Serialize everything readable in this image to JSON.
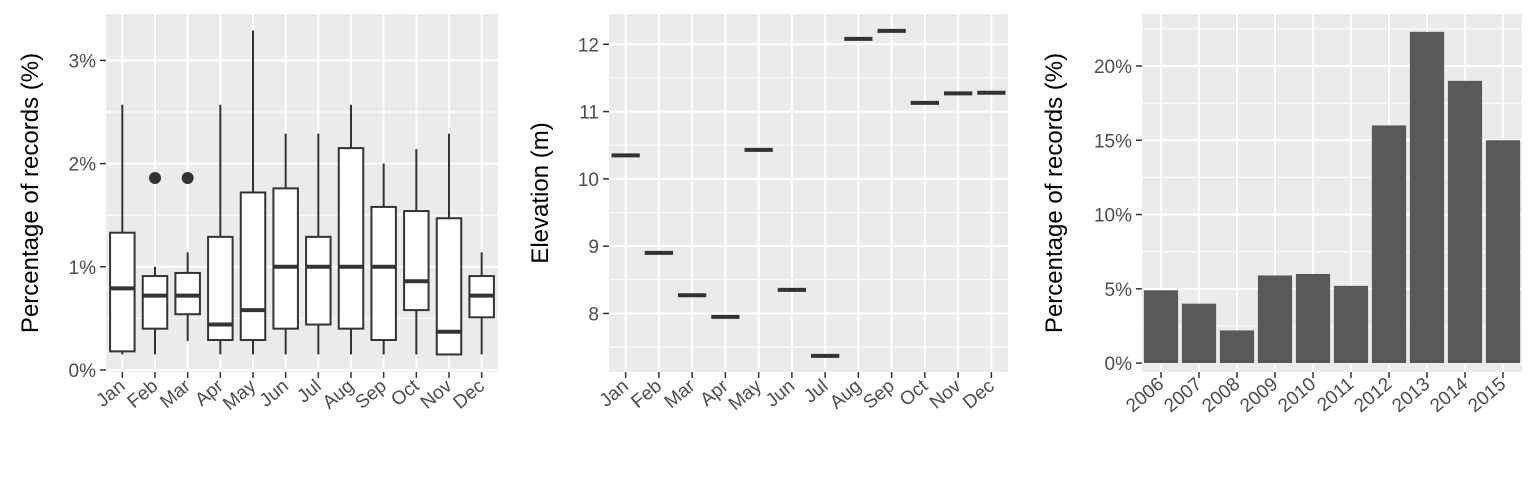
{
  "chart_data": [
    {
      "type": "box",
      "ylabel": "Percentage of records (%)",
      "categories": [
        "Jan",
        "Feb",
        "Mar",
        "Apr",
        "May",
        "Jun",
        "Jul",
        "Aug",
        "Sep",
        "Oct",
        "Nov",
        "Dec"
      ],
      "y_ticks": [
        0,
        1,
        2,
        3
      ],
      "y_tick_labels": [
        "0%",
        "1%",
        "2%",
        "3%"
      ],
      "ylim": [
        -0.02,
        3.45
      ],
      "boxes": [
        {
          "min": 0.15,
          "q1": 0.18,
          "median": 0.79,
          "q3": 1.33,
          "max": 2.57,
          "outliers": []
        },
        {
          "min": 0.15,
          "q1": 0.4,
          "median": 0.72,
          "q3": 0.91,
          "max": 1.0,
          "outliers": [
            1.86
          ]
        },
        {
          "min": 0.28,
          "q1": 0.54,
          "median": 0.72,
          "q3": 0.94,
          "max": 1.14,
          "outliers": [
            1.86
          ]
        },
        {
          "min": 0.15,
          "q1": 0.29,
          "median": 0.44,
          "q3": 1.29,
          "max": 2.57,
          "outliers": []
        },
        {
          "min": 0.15,
          "q1": 0.29,
          "median": 0.58,
          "q3": 1.72,
          "max": 3.29,
          "outliers": []
        },
        {
          "min": 0.15,
          "q1": 0.4,
          "median": 1.0,
          "q3": 1.76,
          "max": 2.29,
          "outliers": []
        },
        {
          "min": 0.15,
          "q1": 0.44,
          "median": 1.0,
          "q3": 1.29,
          "max": 2.29,
          "outliers": []
        },
        {
          "min": 0.15,
          "q1": 0.4,
          "median": 1.0,
          "q3": 2.15,
          "max": 2.57,
          "outliers": []
        },
        {
          "min": 0.15,
          "q1": 0.29,
          "median": 1.0,
          "q3": 1.58,
          "max": 2.0,
          "outliers": []
        },
        {
          "min": 0.15,
          "q1": 0.58,
          "median": 0.86,
          "q3": 1.54,
          "max": 2.14,
          "outliers": []
        },
        {
          "min": 0.15,
          "q1": 0.15,
          "median": 0.37,
          "q3": 1.47,
          "max": 2.29,
          "outliers": []
        },
        {
          "min": 0.15,
          "q1": 0.51,
          "median": 0.72,
          "q3": 0.91,
          "max": 1.14,
          "outliers": []
        }
      ],
      "colors": {
        "panel": "#ebebeb",
        "grid": "#ffffff",
        "line": "#333333",
        "box_fill": "#ffffff"
      }
    },
    {
      "type": "scatter",
      "ylabel": "Elevation (m)",
      "categories": [
        "Jan",
        "Feb",
        "Mar",
        "Apr",
        "May",
        "Jun",
        "Jul",
        "Aug",
        "Sep",
        "Oct",
        "Nov",
        "Dec"
      ],
      "values": [
        10.35,
        8.9,
        8.27,
        7.95,
        10.43,
        8.35,
        7.37,
        12.08,
        12.2,
        11.13,
        11.27,
        11.28
      ],
      "y_ticks": [
        8,
        9,
        10,
        11,
        12
      ],
      "y_tick_labels": [
        "8",
        "9",
        "10",
        "11",
        "12"
      ],
      "ylim": [
        7.13,
        12.45
      ],
      "colors": {
        "panel": "#ebebeb",
        "grid": "#ffffff",
        "mark": "#333333"
      }
    },
    {
      "type": "bar",
      "ylabel": "Percentage of records (%)",
      "categories": [
        "2006",
        "2007",
        "2008",
        "2009",
        "2010",
        "2011",
        "2012",
        "2013",
        "2014",
        "2015"
      ],
      "values": [
        4.9,
        4.0,
        2.2,
        5.9,
        6.0,
        5.2,
        16.0,
        22.3,
        19.0,
        15.0
      ],
      "y_ticks": [
        0,
        5,
        10,
        15,
        20
      ],
      "y_tick_labels": [
        "0%",
        "5%",
        "10%",
        "15%",
        "20%"
      ],
      "ylim": [
        -0.6,
        23.5
      ],
      "colors": {
        "panel": "#ebebeb",
        "grid": "#ffffff",
        "bar": "#595959"
      }
    }
  ]
}
